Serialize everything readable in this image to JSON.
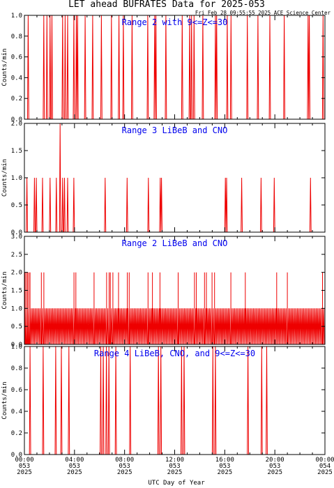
{
  "title": "LET ahead BUFRATES Data for 2025-053",
  "timestamp": "Fri Feb 28 09:55:55 2025 ACE Science Center",
  "xlabel": "UTC Day of Year",
  "colors": {
    "trace": "#ee0000",
    "panel_title": "#0000ee",
    "axes": "#000000"
  },
  "chart_data": [
    {
      "type": "line",
      "title": "Range 2 with 9<=Z<=30",
      "ylabel": "Counts/min",
      "ylim": [
        0,
        1
      ],
      "yticks": [
        "0.0",
        "0.2",
        "0.4",
        "0.6",
        "0.8",
        "1.0"
      ],
      "xlim_hours": [
        0,
        24
      ],
      "series": [
        {
          "values_at_hours": [
            [
              0.3,
              1
            ],
            [
              1.55,
              1
            ],
            [
              1.8,
              1
            ],
            [
              2.05,
              1
            ],
            [
              2.2,
              1
            ],
            [
              3.05,
              1
            ],
            [
              3.25,
              1
            ],
            [
              3.45,
              1
            ],
            [
              3.95,
              1
            ],
            [
              4.15,
              1
            ],
            [
              4.25,
              1
            ],
            [
              4.85,
              1
            ],
            [
              5.45,
              1
            ],
            [
              6.15,
              1
            ],
            [
              6.95,
              1
            ],
            [
              7.55,
              1
            ],
            [
              7.9,
              1
            ],
            [
              8.6,
              1
            ],
            [
              9.85,
              1
            ],
            [
              10.4,
              1
            ],
            [
              10.5,
              1
            ],
            [
              11.3,
              1
            ],
            [
              12.6,
              1
            ],
            [
              13.2,
              1
            ],
            [
              13.35,
              1
            ],
            [
              13.55,
              1
            ],
            [
              14.25,
              1
            ],
            [
              15.25,
              1
            ],
            [
              15.35,
              1
            ],
            [
              16.2,
              1
            ],
            [
              16.5,
              1
            ],
            [
              17.8,
              1
            ],
            [
              18.65,
              1
            ],
            [
              19.6,
              1
            ],
            [
              20.75,
              1
            ],
            [
              22.65,
              1
            ],
            [
              22.75,
              1
            ],
            [
              23.85,
              1
            ]
          ]
        }
      ]
    },
    {
      "type": "line",
      "title": "Range 3 LiBeB and CNO",
      "ylabel": "Counts/min",
      "ylim": [
        0,
        2
      ],
      "yticks": [
        "0.0",
        "0.5",
        "1.0",
        "1.5",
        "2.0"
      ],
      "xlim_hours": [
        0,
        24
      ],
      "series": [
        {
          "values_at_hours": [
            [
              0.2,
              1
            ],
            [
              0.8,
              1
            ],
            [
              0.95,
              1
            ],
            [
              1.45,
              1
            ],
            [
              2.05,
              1
            ],
            [
              2.55,
              1
            ],
            [
              2.85,
              2
            ],
            [
              3.05,
              1
            ],
            [
              3.2,
              1
            ],
            [
              3.45,
              1
            ],
            [
              3.95,
              1
            ],
            [
              6.45,
              1
            ],
            [
              8.2,
              1
            ],
            [
              9.9,
              1
            ],
            [
              10.85,
              1
            ],
            [
              10.95,
              1
            ],
            [
              16.05,
              1
            ],
            [
              16.15,
              1
            ],
            [
              17.35,
              1
            ],
            [
              18.9,
              1
            ],
            [
              19.95,
              1
            ],
            [
              22.85,
              1
            ]
          ]
        }
      ]
    },
    {
      "type": "line",
      "title": "Range 2 LiBeB and CNO",
      "ylabel": "Counts/min",
      "ylim": [
        0,
        3
      ],
      "yticks": [
        "0.0",
        "0.5",
        "1.0",
        "1.5",
        "2.0",
        "2.5",
        "3.0"
      ],
      "xlim_hours": [
        0,
        24
      ],
      "baseline_rate": 1,
      "series": [
        {
          "values_at_hours": [
            [
              0.05,
              2
            ],
            [
              0.15,
              2
            ],
            [
              0.25,
              2
            ],
            [
              0.35,
              2
            ],
            [
              0.45,
              2
            ],
            [
              1.35,
              2
            ],
            [
              1.55,
              2
            ],
            [
              3.95,
              2
            ],
            [
              4.1,
              2
            ],
            [
              5.55,
              2
            ],
            [
              6.55,
              2
            ],
            [
              6.75,
              2
            ],
            [
              6.85,
              2
            ],
            [
              7.05,
              2
            ],
            [
              7.5,
              2
            ],
            [
              8.2,
              2
            ],
            [
              8.35,
              2
            ],
            [
              9.85,
              2
            ],
            [
              10.2,
              2
            ],
            [
              10.8,
              2
            ],
            [
              12.25,
              2
            ],
            [
              13.55,
              2
            ],
            [
              13.7,
              2
            ],
            [
              14.35,
              2
            ],
            [
              14.5,
              2
            ],
            [
              14.95,
              2
            ],
            [
              15.15,
              2
            ],
            [
              16.45,
              2
            ],
            [
              17.6,
              2
            ],
            [
              20.1,
              2
            ],
            [
              20.95,
              2
            ],
            [
              23.8,
              2
            ]
          ]
        }
      ]
    },
    {
      "type": "line",
      "title": "Range 4 LiBeB, CNO, and 9<=Z<=30",
      "ylabel": "Counts/min",
      "ylim": [
        0,
        1
      ],
      "yticks": [
        "0.0",
        "0.2",
        "0.4",
        "0.6",
        "0.8",
        "1.0"
      ],
      "xlim_hours": [
        0,
        24
      ],
      "series": [
        {
          "values_at_hours": [
            [
              0.45,
              1
            ],
            [
              1.5,
              1
            ],
            [
              2.5,
              1
            ],
            [
              2.95,
              1
            ],
            [
              3.55,
              1
            ],
            [
              6.1,
              1
            ],
            [
              6.3,
              1
            ],
            [
              6.55,
              1
            ],
            [
              6.75,
              1
            ],
            [
              7.3,
              1
            ],
            [
              8.45,
              1
            ],
            [
              10.7,
              1
            ],
            [
              10.9,
              1
            ],
            [
              12.55,
              1
            ],
            [
              12.75,
              1
            ],
            [
              15.05,
              1
            ],
            [
              15.25,
              1
            ],
            [
              17.85,
              1
            ],
            [
              18.95,
              1
            ],
            [
              19.35,
              1
            ]
          ]
        }
      ]
    }
  ],
  "x_ticks": [
    {
      "hour": 0,
      "time": "00:00",
      "doy": "053",
      "year": "2025"
    },
    {
      "hour": 4,
      "time": "04:00",
      "doy": "053",
      "year": "2025"
    },
    {
      "hour": 8,
      "time": "08:00",
      "doy": "053",
      "year": "2025"
    },
    {
      "hour": 12,
      "time": "12:00",
      "doy": "053",
      "year": "2025"
    },
    {
      "hour": 16,
      "time": "16:00",
      "doy": "053",
      "year": "2025"
    },
    {
      "hour": 20,
      "time": "20:00",
      "doy": "053",
      "year": "2025"
    },
    {
      "hour": 24,
      "time": "00:00",
      "doy": "054",
      "year": "2025"
    }
  ]
}
